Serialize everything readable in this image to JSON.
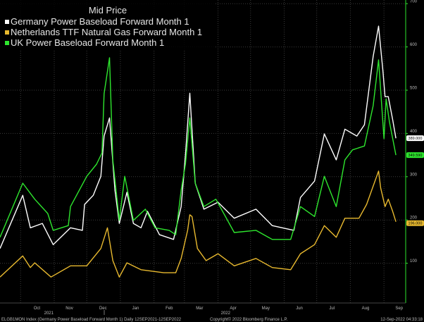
{
  "chart_data": {
    "type": "line",
    "title": "Mid Price",
    "x_unit": "days since 12 Sep 2021",
    "xlim": [
      0,
      365
    ],
    "ylim": [
      0,
      700
    ],
    "y_ticks": [
      100,
      200,
      300,
      400,
      500,
      600,
      700
    ],
    "y_axis_side": "right",
    "x_tick_labels": [
      "Sep",
      "Oct",
      "Nov",
      "Dec",
      "Jan",
      "Feb",
      "Mar",
      "Apr",
      "May",
      "Jun",
      "Jul",
      "Aug",
      "Sep"
    ],
    "x_tick_days": [
      -6,
      34,
      64,
      95,
      125,
      156,
      184,
      215,
      245,
      276,
      306,
      337,
      368
    ],
    "month_boundary_days": [
      19,
      50,
      80,
      111,
      142,
      170,
      201,
      231,
      262,
      292,
      323,
      354
    ],
    "year_labels": [
      {
        "text": "2021",
        "day": 45
      },
      {
        "text": "2022",
        "day": 208
      }
    ],
    "grid": true,
    "legend_position": "top-left",
    "series": [
      {
        "name": "Germany Power Baseload Forward Month 1",
        "color": "#ffffff",
        "last_label": "389.000",
        "x": [
          0,
          21,
          28,
          39,
          49,
          65,
          76,
          78,
          86,
          93,
          96,
          101,
          106,
          110,
          117,
          123,
          130,
          136,
          147,
          160,
          167,
          171,
          175,
          180,
          188,
          201,
          216,
          236,
          251,
          271,
          277,
          290,
          299,
          310,
          318,
          329,
          336,
          344,
          349,
          353,
          355,
          358,
          362,
          365
        ],
        "y": [
          134,
          257,
          182,
          192,
          143,
          182,
          176,
          236,
          257,
          301,
          394,
          436,
          269,
          192,
          264,
          192,
          182,
          220,
          166,
          155,
          231,
          350,
          493,
          285,
          225,
          241,
          204,
          225,
          187,
          176,
          252,
          290,
          399,
          339,
          410,
          394,
          420,
          578,
          648,
          546,
          485,
          485,
          432,
          389
        ]
      },
      {
        "name": "Netherlands TTF Natural Gas Forward Month 1",
        "color": "#e8b92f",
        "last_label": "196.000",
        "x": [
          0,
          21,
          28,
          32,
          47,
          65,
          80,
          93,
          99,
          104,
          110,
          117,
          130,
          151,
          162,
          167,
          173,
          175,
          177,
          182,
          190,
          201,
          216,
          236,
          251,
          268,
          277,
          290,
          299,
          310,
          318,
          331,
          338,
          349,
          351,
          355,
          358,
          362,
          365
        ],
        "y": [
          68,
          117,
          90,
          101,
          68,
          94,
          94,
          134,
          182,
          106,
          68,
          101,
          85,
          78,
          78,
          111,
          176,
          212,
          208,
          134,
          106,
          122,
          94,
          111,
          90,
          85,
          122,
          143,
          187,
          160,
          204,
          204,
          236,
          313,
          274,
          231,
          248,
          220,
          196
        ]
      },
      {
        "name": "UK Power Baseload Forward Month 1",
        "color": "#2ee62e",
        "last_label": "349.590",
        "x": [
          0,
          21,
          32,
          44,
          49,
          63,
          65,
          80,
          89,
          94,
          96,
          101,
          104,
          110,
          115,
          123,
          134,
          143,
          156,
          162,
          167,
          171,
          175,
          180,
          188,
          199,
          216,
          236,
          251,
          268,
          277,
          290,
          299,
          310,
          318,
          325,
          336,
          344,
          349,
          354,
          356,
          359,
          365
        ],
        "y": [
          160,
          285,
          248,
          215,
          176,
          187,
          231,
          301,
          329,
          355,
          492,
          575,
          339,
          199,
          301,
          199,
          225,
          182,
          176,
          166,
          269,
          329,
          436,
          285,
          231,
          248,
          171,
          176,
          155,
          155,
          231,
          208,
          301,
          231,
          339,
          362,
          371,
          464,
          570,
          388,
          480,
          427,
          350
        ]
      }
    ]
  },
  "footer": {
    "ticker": "ELGB1MON Index (Germany Power Baseload Forward Month 1)  Daily 12SEP2021-12SEP2022",
    "copyright": "Copyright© 2022 Bloomberg Finance L.P.",
    "timestamp": "12-Sep-2022 04:33:18"
  }
}
